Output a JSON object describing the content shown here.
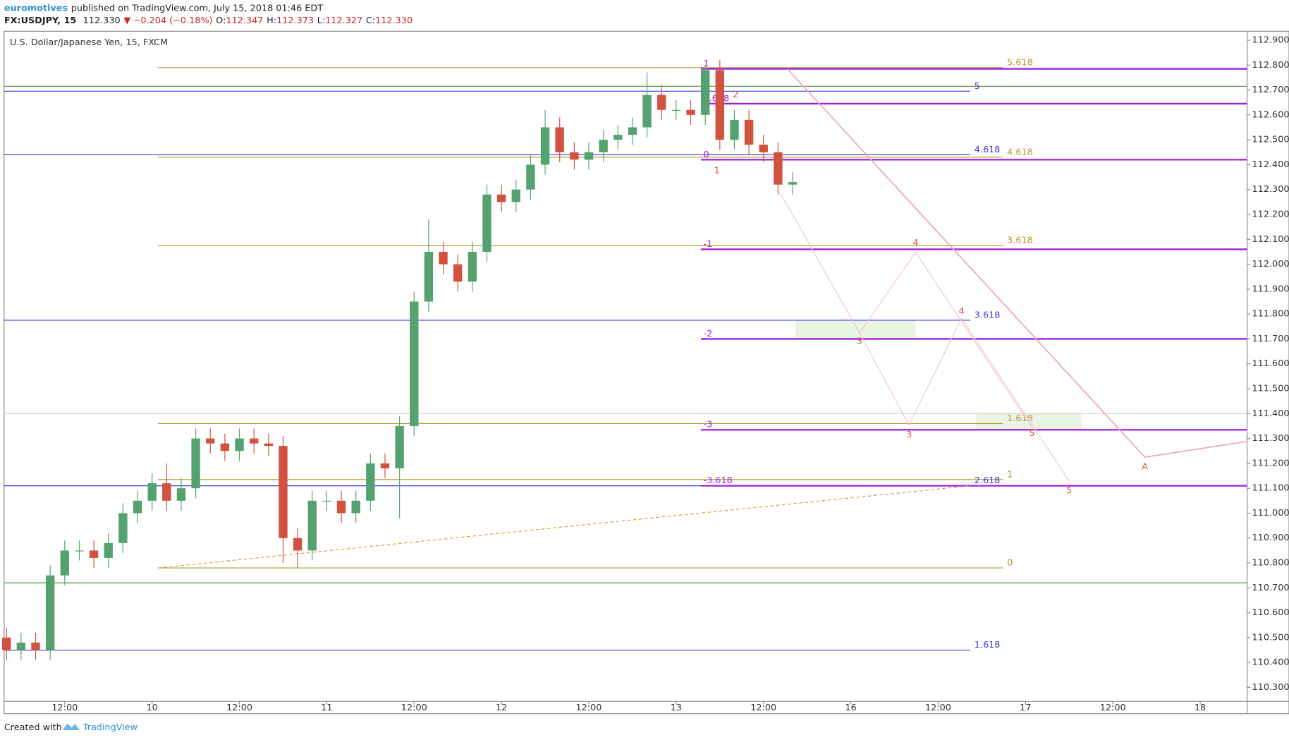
{
  "header": {
    "author": "euromotives",
    "published": "published on TradingView.com, July 15, 2018 01:46 EDT",
    "symbol": "FX:USDJPY, 15",
    "last": "112.330",
    "change": "−0.204 (−0.18%)",
    "ohlc": [
      {
        "key": "O:",
        "value": "112.347"
      },
      {
        "key": "H:",
        "value": "112.373"
      },
      {
        "key": "L:",
        "value": "112.327"
      },
      {
        "key": "C:",
        "value": "112.330"
      }
    ]
  },
  "footer": {
    "created": "Created with",
    "brand": "TradingView"
  },
  "chart_data": {
    "type": "candlestick",
    "title": "U.S. Dollar/Japanese Yen, 15, FXCM",
    "up_color": "#53a26f",
    "down_color": "#d0523f",
    "xlim": [
      3.67,
      174.44
    ],
    "ylim": [
      110.244,
      112.936
    ],
    "xticks": [
      {
        "value": 12,
        "label": "12:00"
      },
      {
        "value": 24,
        "label": "10"
      },
      {
        "value": 36,
        "label": "12:00"
      },
      {
        "value": 48,
        "label": "11"
      },
      {
        "value": 60,
        "label": "12:00"
      },
      {
        "value": 72,
        "label": "12"
      },
      {
        "value": 84,
        "label": "12:00"
      },
      {
        "value": 96,
        "label": "13"
      },
      {
        "value": 108,
        "label": "12:00"
      },
      {
        "value": 120,
        "label": "16"
      },
      {
        "value": 132,
        "label": "12:00"
      },
      {
        "value": 144,
        "label": "17"
      },
      {
        "value": 156,
        "label": "12:00"
      },
      {
        "value": 168,
        "label": "18"
      }
    ],
    "yticks": [
      {
        "value": 112.9,
        "label": "112.900"
      },
      {
        "value": 112.8,
        "label": "112.800"
      },
      {
        "value": 112.7,
        "label": "112.700"
      },
      {
        "value": 112.6,
        "label": "112.600"
      },
      {
        "value": 112.5,
        "label": "112.500"
      },
      {
        "value": 112.4,
        "label": "112.400"
      },
      {
        "value": 112.3,
        "label": "112.300"
      },
      {
        "value": 112.2,
        "label": "112.200"
      },
      {
        "value": 112.1,
        "label": "112.100"
      },
      {
        "value": 112,
        "label": "112.000"
      },
      {
        "value": 111.9,
        "label": "111.900"
      },
      {
        "value": 111.8,
        "label": "111.800"
      },
      {
        "value": 111.7,
        "label": "111.700"
      },
      {
        "value": 111.6,
        "label": "111.600"
      },
      {
        "value": 111.5,
        "label": "111.500"
      },
      {
        "value": 111.4,
        "label": "111.400"
      },
      {
        "value": 111.3,
        "label": "111.300"
      },
      {
        "value": 111.2,
        "label": "111.200"
      },
      {
        "value": 111.1,
        "label": "111.100"
      },
      {
        "value": 111,
        "label": "111.000"
      },
      {
        "value": 110.9,
        "label": "110.900"
      },
      {
        "value": 110.8,
        "label": "110.800"
      },
      {
        "value": 110.7,
        "label": "110.700"
      },
      {
        "value": 110.6,
        "label": "110.600"
      },
      {
        "value": 110.5,
        "label": "110.500"
      },
      {
        "value": 110.4,
        "label": "110.400"
      },
      {
        "value": 110.3,
        "label": "110.300"
      }
    ],
    "x": [
      4,
      6,
      8,
      10,
      12,
      14,
      16,
      18,
      20,
      22,
      24,
      26,
      28,
      30,
      32,
      34,
      36,
      38,
      40,
      42,
      44,
      46,
      48,
      50,
      52,
      54,
      56,
      58,
      60,
      62,
      64,
      66,
      68,
      70,
      72,
      74,
      76,
      78,
      80,
      82,
      84,
      86,
      88,
      90,
      92,
      94,
      96,
      98,
      100,
      102,
      104,
      106,
      108,
      110,
      112
    ],
    "open": [
      110.5,
      110.45,
      110.48,
      110.45,
      110.75,
      110.85,
      110.85,
      110.82,
      110.88,
      111,
      111.05,
      111.12,
      111.05,
      111.1,
      111.3,
      111.28,
      111.25,
      111.3,
      111.28,
      111.27,
      110.9,
      110.85,
      111.05,
      111.05,
      111,
      111.05,
      111.2,
      111.18,
      111.35,
      111.85,
      112.05,
      112,
      111.93,
      112.05,
      112.28,
      112.25,
      112.3,
      112.4,
      112.55,
      112.45,
      112.42,
      112.45,
      112.5,
      112.52,
      112.55,
      112.68,
      112.62,
      112.62,
      112.6,
      112.78,
      112.5,
      112.58,
      112.48,
      112.45,
      112.32
    ],
    "high": [
      110.54,
      110.52,
      110.52,
      110.79,
      110.89,
      110.89,
      110.89,
      110.92,
      111.04,
      111.09,
      111.16,
      111.2,
      111.14,
      111.34,
      111.34,
      111.32,
      111.34,
      111.34,
      111.32,
      111.31,
      110.94,
      111.09,
      111.09,
      111.09,
      111.09,
      111.24,
      111.24,
      111.39,
      111.89,
      112.18,
      112.09,
      112.04,
      112.09,
      112.32,
      112.32,
      112.34,
      112.44,
      112.62,
      112.59,
      112.49,
      112.49,
      112.54,
      112.56,
      112.59,
      112.77,
      112.72,
      112.66,
      112.66,
      112.8,
      112.82,
      112.62,
      112.62,
      112.52,
      112.49,
      112.37
    ],
    "low": [
      110.41,
      110.41,
      110.41,
      110.41,
      110.71,
      110.81,
      110.78,
      110.78,
      110.84,
      110.96,
      111.01,
      111.01,
      111.01,
      111.06,
      111.24,
      111.21,
      111.21,
      111.24,
      111.23,
      110.8,
      110.78,
      110.81,
      111.01,
      110.96,
      110.96,
      111.01,
      111.14,
      110.98,
      111.31,
      111.81,
      111.96,
      111.89,
      111.89,
      112.01,
      112.21,
      112.21,
      112.26,
      112.36,
      112.41,
      112.38,
      112.38,
      112.41,
      112.46,
      112.48,
      112.51,
      112.58,
      112.58,
      112.56,
      112.56,
      112.46,
      112.46,
      112.44,
      112.41,
      112.28,
      112.28
    ],
    "close": [
      110.45,
      110.48,
      110.45,
      110.75,
      110.85,
      110.85,
      110.82,
      110.88,
      111,
      111.05,
      111.12,
      111.05,
      111.1,
      111.3,
      111.28,
      111.25,
      111.3,
      111.28,
      111.27,
      110.9,
      110.85,
      111.05,
      111.05,
      111,
      111.05,
      111.2,
      111.18,
      111.35,
      111.85,
      112.05,
      112,
      111.93,
      112.05,
      112.28,
      112.25,
      112.3,
      112.4,
      112.55,
      112.45,
      112.42,
      112.45,
      112.5,
      112.52,
      112.55,
      112.68,
      112.62,
      112.62,
      112.6,
      112.78,
      112.5,
      112.58,
      112.48,
      112.45,
      112.32,
      112.33
    ],
    "fib_sets": [
      {
        "color": "#b59a2c",
        "width": 1,
        "from": 24.8,
        "to": 140.9,
        "label_at": "end",
        "levels": [
          {
            "price": 112.79,
            "label": "5.618"
          },
          {
            "price": 112.43,
            "label": "4.618"
          },
          {
            "price": 112.075,
            "label": "3.618"
          },
          {
            "price": 111.36,
            "label": "1.618"
          },
          {
            "price": 111.135,
            "label": "1"
          },
          {
            "price": 110.78,
            "label": "0"
          }
        ]
      },
      {
        "color": "#3a3ad8",
        "width": 1,
        "from": 3.67,
        "to": 136.4,
        "label_at": "end",
        "levels": [
          {
            "price": 112.695,
            "label": "5"
          },
          {
            "price": 112.44,
            "label": "4.618"
          },
          {
            "price": 111.775,
            "label": "3.618"
          },
          {
            "price": 111.11,
            "label": "2.618"
          },
          {
            "price": 110.45,
            "label": "1.618"
          }
        ]
      },
      {
        "color": "#a21fd8",
        "width": 2,
        "from": 99.4,
        "to": 174.44,
        "label_at": "start",
        "levels": [
          {
            "price": 112.785,
            "label": "1"
          },
          {
            "price": 112.645,
            "label": "0.618"
          },
          {
            "price": 112.42,
            "label": "0"
          },
          {
            "price": 112.06,
            "label": "-1"
          },
          {
            "price": 111.7,
            "label": "-2"
          },
          {
            "price": 111.335,
            "label": "-3"
          },
          {
            "price": 111.11,
            "label": "-3.618"
          }
        ]
      },
      {
        "color": "#4f8f3c",
        "width": 1,
        "from": 3.67,
        "to": 174.44,
        "levels": [
          {
            "price": 112.715
          },
          {
            "price": 110.72
          }
        ]
      },
      {
        "color": "#d0d0d0",
        "width": 1,
        "from": 3.67,
        "to": 174.44,
        "levels": [
          {
            "price": 111.4
          }
        ]
      }
    ],
    "zones": {
      "color": "#e4f1dc",
      "items": [
        {
          "x": [
            112.4,
            128.9
          ],
          "y": [
            111.7,
            111.775
          ]
        },
        {
          "x": [
            137.2,
            151.7
          ],
          "y": [
            111.335,
            111.4
          ]
        }
      ]
    },
    "paths": [
      {
        "color": "#e7a9bd",
        "width": 1.5,
        "x": [
          111.3,
          160.4,
          174.44
        ],
        "y": [
          112.784,
          111.225,
          111.288
        ]
      },
      {
        "color": "#f1c4cf",
        "width": 1,
        "x": [
          110.2,
          121.2,
          128.9,
          144.9
        ],
        "y": [
          112.292,
          111.724,
          112.048,
          111.344
        ]
      },
      {
        "color": "#f1c4cf",
        "width": 1,
        "x": [
          121.2,
          128,
          135.2,
          150
        ],
        "y": [
          111.724,
          111.354,
          111.783,
          111.129
        ]
      },
      {
        "color": "#e09a3a",
        "width": 1,
        "dashed": true,
        "x": [
          24.8,
          136.4
        ],
        "y": [
          110.78,
          111.11
        ]
      }
    ],
    "wave_labels": {
      "color": "#d8504a",
      "items": [
        {
          "text": "3",
          "x": 121.2,
          "y": 111.69
        },
        {
          "text": "4",
          "x": 128.9,
          "y": 112.085
        },
        {
          "text": "3",
          "x": 128,
          "y": 111.315
        },
        {
          "text": "4",
          "x": 135.2,
          "y": 111.81
        },
        {
          "text": "5",
          "x": 144.9,
          "y": 111.32
        },
        {
          "text": "5",
          "x": 150,
          "y": 111.09
        },
        {
          "text": "A",
          "x": 160.4,
          "y": 111.185
        },
        {
          "text": "1",
          "x": 101.6,
          "y": 112.375
        },
        {
          "text": "2",
          "x": 104.2,
          "y": 112.68
        }
      ]
    }
  }
}
